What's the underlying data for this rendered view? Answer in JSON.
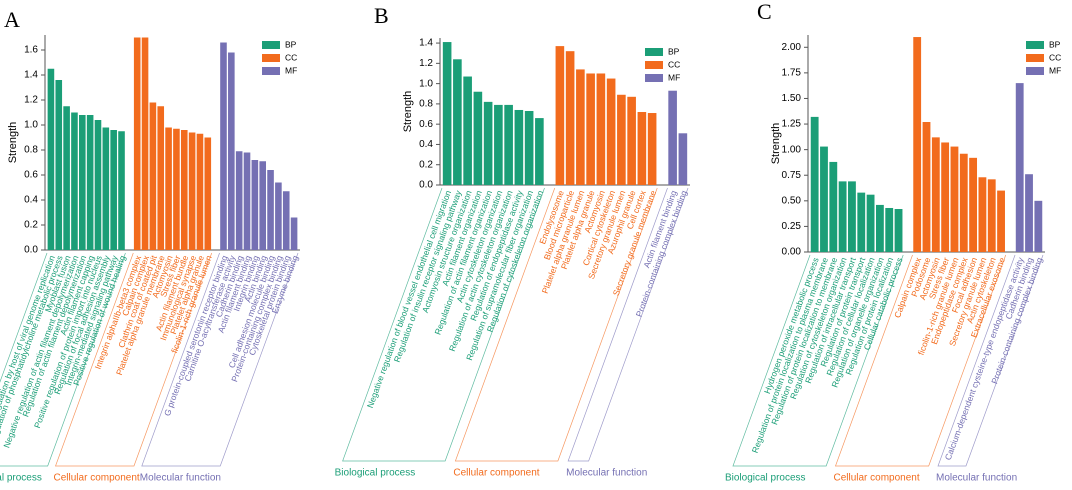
{
  "chart_data": [
    {
      "type": "bar",
      "panel": "A",
      "ylabel": "Strength",
      "ylim": [
        0,
        1.72
      ],
      "yticks": [
        {
          "value": 0,
          "label": "0.0"
        },
        0.2,
        0.4,
        0.6,
        0.8,
        {
          "value": 1,
          "label": "1.0"
        },
        1.2,
        1.4,
        1.6
      ],
      "series": [
        {
          "name": "BP",
          "group_label": "Biological process",
          "color": "#1b9e77",
          "categories": [
            "Positive regulation by host of viral genome replication",
            "Regulation of phosphatidylcholine metabolic process",
            "Myoblast fusion",
            "Negative regulation of actin filament depolymerization",
            "Regulation of actin filament depolymerization",
            "Actin filament capping",
            "Positive regulation of protein import into nucleus",
            "Regulation of focal adhesion assembly",
            "Integrin-mediated signaling pathway",
            "Positive regulation of wound healing"
          ],
          "values": [
            1.45,
            1.36,
            1.15,
            1.1,
            1.08,
            1.08,
            1.04,
            0.98,
            0.96,
            0.95
          ]
        },
        {
          "name": "CC",
          "group_label": "Cellular component",
          "color": "#f26b1d",
          "categories": [
            "Integrin alphaIIb-beta3 complex",
            "Calpain complex",
            "Clathrin coat of coated pit",
            "Platelet alpha granule membrane",
            "Actomyosin",
            "Stress fiber",
            "Actin filament bundle",
            "Immunological synapse",
            "Platelet alpha granule",
            "ficolin-1-rich granule lumen"
          ],
          "values": [
            1.7,
            1.7,
            1.18,
            1.15,
            0.98,
            0.97,
            0.96,
            0.94,
            0.93,
            0.9
          ]
        },
        {
          "name": "MF",
          "group_label": "Molecular function",
          "color": "#7570b3",
          "categories": [
            "G protein-coupled serotonin receptor binding",
            "Carnitine O-acyltransferase activity",
            "Cadherin binding",
            "Actin filament binding",
            "Integrin binding",
            "Actin binding",
            "Cell adhesion molecule binding",
            "Protein-containing complex binding",
            "Cytoskeletal protein binding",
            "Enzyme binding"
          ],
          "values": [
            1.66,
            1.58,
            0.79,
            0.78,
            0.72,
            0.71,
            0.64,
            0.54,
            0.47,
            0.26
          ]
        }
      ]
    },
    {
      "type": "bar",
      "panel": "B",
      "ylabel": "Strength",
      "ylim": [
        0,
        1.45
      ],
      "yticks": [
        {
          "value": 0,
          "label": "0.0"
        },
        0.2,
        0.4,
        0.6,
        0.8,
        {
          "value": 1,
          "label": "1.0"
        },
        1.2,
        1.4
      ],
      "series": [
        {
          "name": "BP",
          "group_label": "Biological process",
          "color": "#1b9e77",
          "categories": [
            "Negative regulation of blood vessel endothelial cell migration",
            "Regulation of insulin receptor signaling pathway",
            "Actomyosin structure organization",
            "Actin filament organization",
            "Regulation of actin filament organization",
            "Actin cytoskeleton organization",
            "Regulation of actin cytoskeleton organization",
            "Regulation of endopeptidase activity",
            "Regulation of supramolecular fiber organization",
            "Regulation of cytoskeleton organization"
          ],
          "values": [
            1.41,
            1.24,
            1.07,
            0.92,
            0.82,
            0.79,
            0.79,
            0.74,
            0.73,
            0.66
          ]
        },
        {
          "name": "CC",
          "group_label": "Cellular component",
          "color": "#f26b1d",
          "categories": [
            "Endolysosome",
            "Blood microparticle",
            "Platelet alpha granule lumen",
            "Platelet alpha granule",
            "Actomyosin",
            "Cortical cytoskeleton",
            "Secretory granule lumen",
            "Azurophil granule",
            "Cell cortex",
            "Secretory granule membrane"
          ],
          "values": [
            1.37,
            1.32,
            1.14,
            1.1,
            1.1,
            1.05,
            0.89,
            0.87,
            0.72,
            0.71
          ]
        },
        {
          "name": "MF",
          "group_label": "Molecular function",
          "color": "#7570b3",
          "categories": [
            "Actin filament binding",
            "Protein-containing complex binding"
          ],
          "values": [
            0.93,
            0.51
          ]
        }
      ]
    },
    {
      "type": "bar",
      "panel": "C",
      "ylabel": "Strength",
      "ylim": [
        0,
        2.12
      ],
      "yticks": [
        {
          "value": 0,
          "label": "0.00"
        },
        {
          "value": 0.25,
          "label": "0.25"
        },
        {
          "value": 0.5,
          "label": "0.50"
        },
        {
          "value": 0.75,
          "label": "0.75"
        },
        {
          "value": 1,
          "label": "1.00"
        },
        {
          "value": 1.25,
          "label": "1.25"
        },
        {
          "value": 1.5,
          "label": "1.50"
        },
        {
          "value": 1.75,
          "label": "1.75"
        },
        {
          "value": 2,
          "label": "2.00"
        }
      ],
      "series": [
        {
          "name": "BP",
          "group_label": "Biological process",
          "color": "#1b9e77",
          "categories": [
            "Hydrogen peroxide metabolic process",
            "Regulation of protein localization to plasma membrane",
            "Regulation of protein localization to membrane",
            "Regulation of cytoskeleton organization",
            "Regulation of intracellular transport",
            "Regulation of protein transport",
            "Regulation of cellular localization",
            "Regulation of organelle organization",
            "Regulation of protein localization",
            "Cellular catabolic process"
          ],
          "values": [
            1.32,
            1.03,
            0.88,
            0.69,
            0.69,
            0.58,
            0.56,
            0.46,
            0.43,
            0.42
          ]
        },
        {
          "name": "CC",
          "group_label": "Cellular component",
          "color": "#f26b1d",
          "categories": [
            "Calpain complex",
            "Podosome",
            "Actomyosin",
            "Stress fiber",
            "ficolin-1-rich granule lumen",
            "Endopeptidase complex",
            "Focal adhesion",
            "Secretory granule lumen",
            "Actin cytoskeleton",
            "Extracellular exosome"
          ],
          "values": [
            2.1,
            1.27,
            1.12,
            1.07,
            1.03,
            0.96,
            0.92,
            0.73,
            0.71,
            0.6
          ]
        },
        {
          "name": "MF",
          "group_label": "Molecular function",
          "color": "#7570b3",
          "categories": [
            "Calcium-dependent cysteine-type endopeptidase activity",
            "Cadherin binding",
            "Protein-containing complex binding"
          ],
          "values": [
            1.65,
            0.76,
            0.5
          ]
        }
      ]
    }
  ]
}
